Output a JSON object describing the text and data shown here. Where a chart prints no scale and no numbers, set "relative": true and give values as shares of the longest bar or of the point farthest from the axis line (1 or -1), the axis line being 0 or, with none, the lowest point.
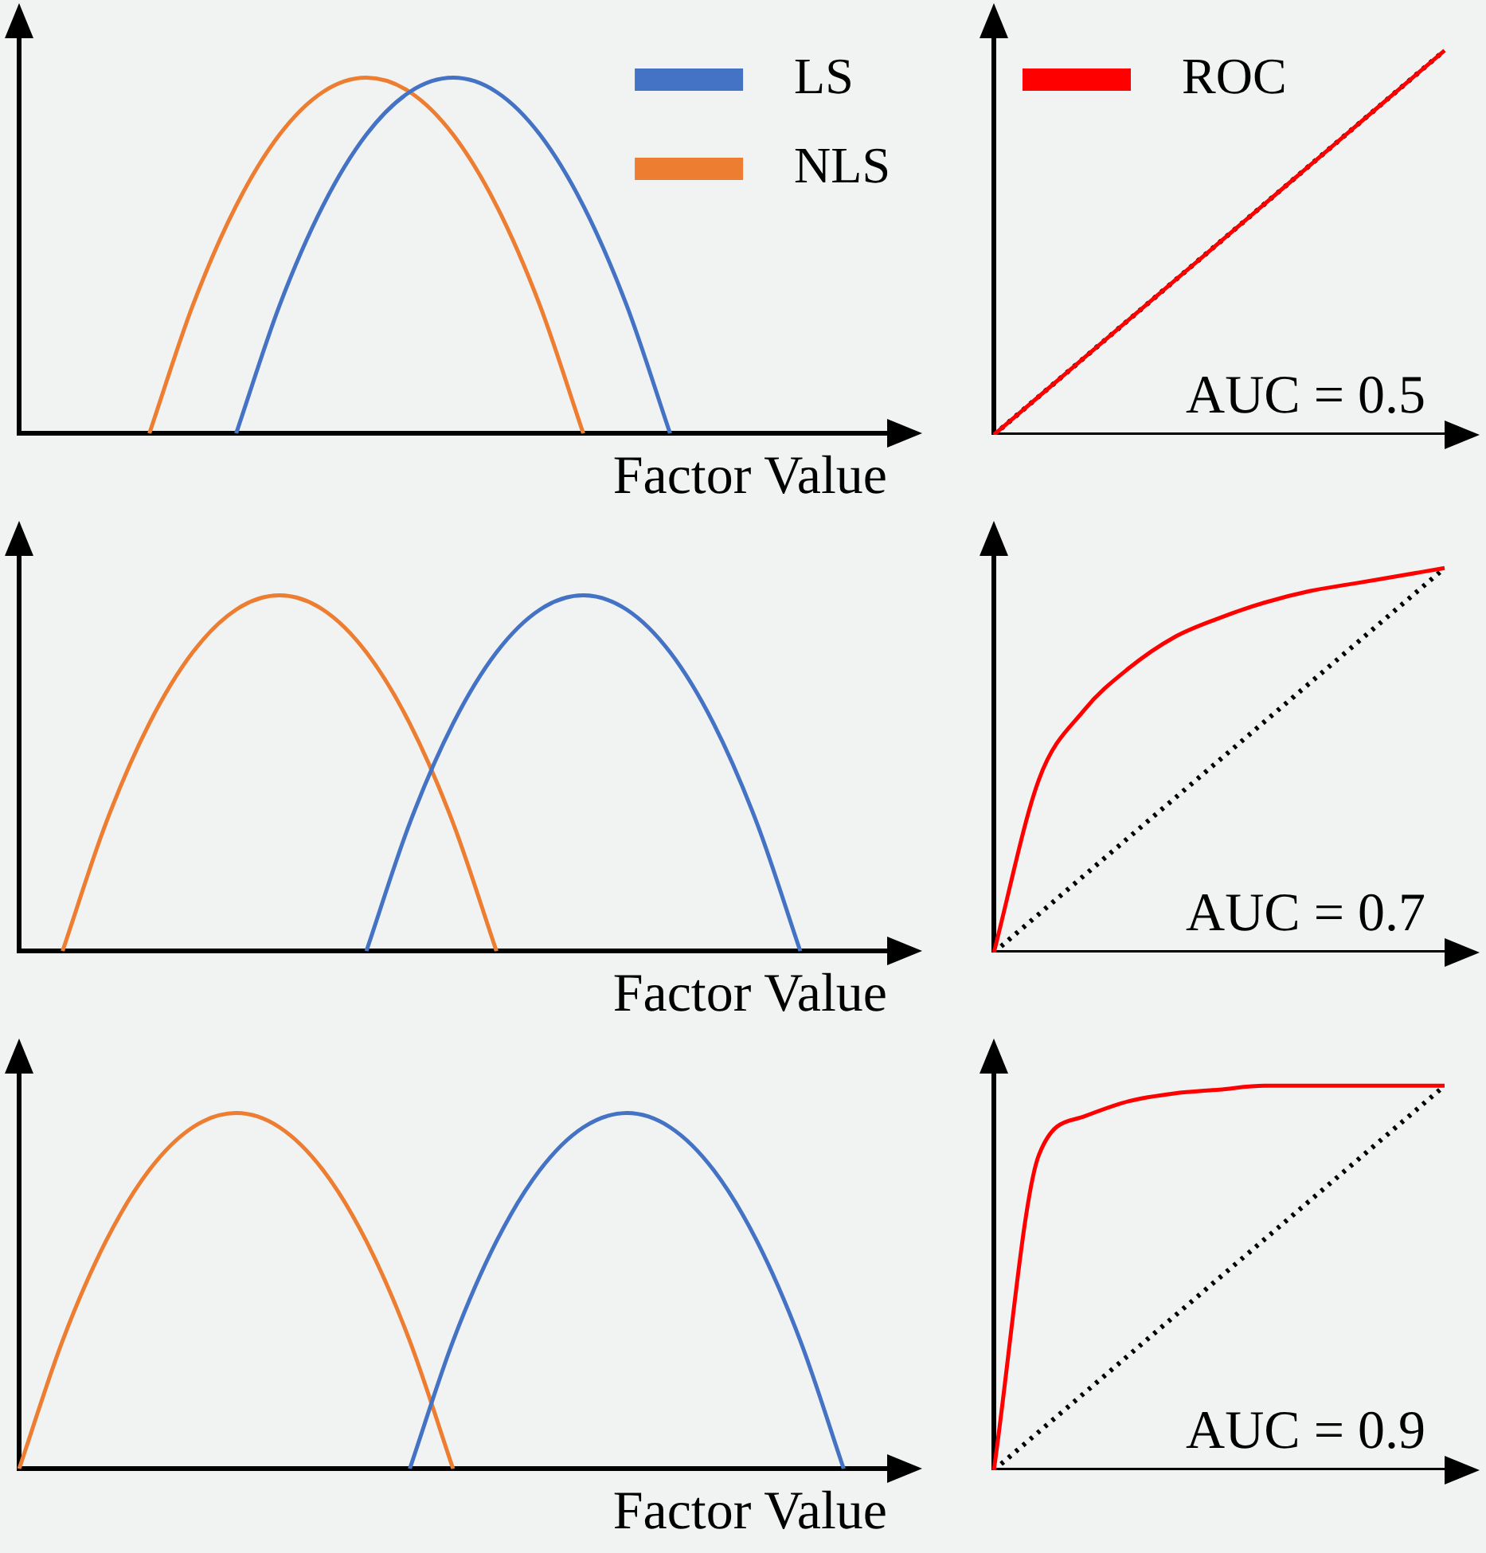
{
  "chart_data": [
    {
      "type": "line",
      "relative": true,
      "grid": false,
      "tick_labels": false,
      "legend": "top right",
      "xlabel": "Factor Value",
      "categories": [
        null,
        null,
        null,
        null,
        null,
        null,
        null,
        null,
        null,
        null,
        null,
        null,
        null,
        null,
        null,
        null,
        null,
        null,
        null,
        null,
        null
      ],
      "series": [
        {
          "name": "LS",
          "color": "#4472c4",
          "values": [
            null,
            null,
            null,
            null,
            null,
            0,
            0.36,
            0.64,
            0.84,
            0.96,
            1,
            0.96,
            0.84,
            0.64,
            0.36,
            0,
            null,
            null,
            null,
            null,
            null
          ]
        },
        {
          "name": "NLS",
          "color": "#ed7d31",
          "values": [
            null,
            null,
            null,
            0,
            0.36,
            0.64,
            0.84,
            0.96,
            1,
            0.96,
            0.84,
            0.64,
            0.36,
            0,
            null,
            null,
            null,
            null,
            null,
            null,
            null
          ]
        }
      ]
    },
    {
      "type": "line",
      "relative": true,
      "grid": false,
      "tick_labels": false,
      "legend": "top left",
      "annotations": [
        "AUC = 0.5"
      ],
      "categories": [
        null,
        null,
        null,
        null,
        null,
        null,
        null,
        null,
        null,
        null,
        null
      ],
      "series": [
        {
          "name": "ROC",
          "color": "#ff0000",
          "values": [
            0,
            0.1,
            0.2,
            0.3,
            0.4,
            0.5,
            0.6,
            0.7,
            0.8,
            0.9,
            1
          ]
        },
        {
          "color": "#000000",
          "line_style": "dotted",
          "values": [
            0,
            0.1,
            0.2,
            0.3,
            0.4,
            0.5,
            0.6,
            0.7,
            0.8,
            0.9,
            1
          ]
        }
      ]
    },
    {
      "type": "line",
      "relative": true,
      "grid": false,
      "tick_labels": false,
      "xlabel": "Factor Value",
      "categories": [
        null,
        null,
        null,
        null,
        null,
        null,
        null,
        null,
        null,
        null,
        null,
        null,
        null,
        null,
        null,
        null,
        null,
        null,
        null,
        null,
        null
      ],
      "series": [
        {
          "color": "#4472c4",
          "values": [
            null,
            null,
            null,
            null,
            null,
            null,
            null,
            null,
            0,
            0.36,
            0.64,
            0.84,
            0.96,
            1,
            0.96,
            0.84,
            0.64,
            0.36,
            0,
            null,
            null
          ]
        },
        {
          "color": "#ed7d31",
          "values": [
            null,
            0,
            0.36,
            0.64,
            0.84,
            0.96,
            1,
            0.96,
            0.84,
            0.64,
            0.36,
            0,
            null,
            null,
            null,
            null,
            null,
            null,
            null,
            null,
            null
          ]
        }
      ]
    },
    {
      "type": "line",
      "relative": true,
      "grid": false,
      "tick_labels": false,
      "annotations": [
        "AUC = 0.7"
      ],
      "categories": [
        null,
        null,
        null,
        null,
        null,
        null,
        null,
        null,
        null,
        null,
        null
      ],
      "series": [
        {
          "color": "#ff0000",
          "values": [
            0,
            0.45,
            0.63,
            0.74,
            0.82,
            0.87,
            0.91,
            0.94,
            0.96,
            0.98,
            1
          ]
        },
        {
          "color": "#000000",
          "line_style": "dotted",
          "values": [
            0,
            0.1,
            0.2,
            0.3,
            0.4,
            0.5,
            0.6,
            0.7,
            0.8,
            0.9,
            1
          ]
        }
      ]
    },
    {
      "type": "line",
      "relative": true,
      "grid": false,
      "tick_labels": false,
      "xlabel": "Factor Value",
      "categories": [
        null,
        null,
        null,
        null,
        null,
        null,
        null,
        null,
        null,
        null,
        null,
        null,
        null,
        null,
        null,
        null,
        null,
        null,
        null,
        null,
        null
      ],
      "series": [
        {
          "color": "#4472c4",
          "values": [
            null,
            null,
            null,
            null,
            null,
            null,
            null,
            null,
            null,
            0,
            0.36,
            0.64,
            0.84,
            0.96,
            1,
            0.96,
            0.84,
            0.64,
            0.36,
            0,
            null
          ]
        },
        {
          "color": "#ed7d31",
          "values": [
            0,
            0.36,
            0.64,
            0.84,
            0.96,
            1,
            0.96,
            0.84,
            0.64,
            0.36,
            0,
            null,
            null,
            null,
            null,
            null,
            null,
            null,
            null,
            null,
            null
          ]
        }
      ]
    },
    {
      "type": "line",
      "relative": true,
      "grid": false,
      "tick_labels": false,
      "annotations": [
        "AUC = 0.9"
      ],
      "categories": [
        null,
        null,
        null,
        null,
        null,
        null,
        null,
        null,
        null,
        null,
        null
      ],
      "series": [
        {
          "color": "#ff0000",
          "values": [
            0,
            0.82,
            0.92,
            0.96,
            0.98,
            0.99,
            1,
            1,
            1,
            1,
            1
          ]
        },
        {
          "color": "#000000",
          "line_style": "dotted",
          "values": [
            0,
            0.1,
            0.2,
            0.3,
            0.4,
            0.5,
            0.6,
            0.7,
            0.8,
            0.9,
            1
          ]
        }
      ]
    }
  ]
}
